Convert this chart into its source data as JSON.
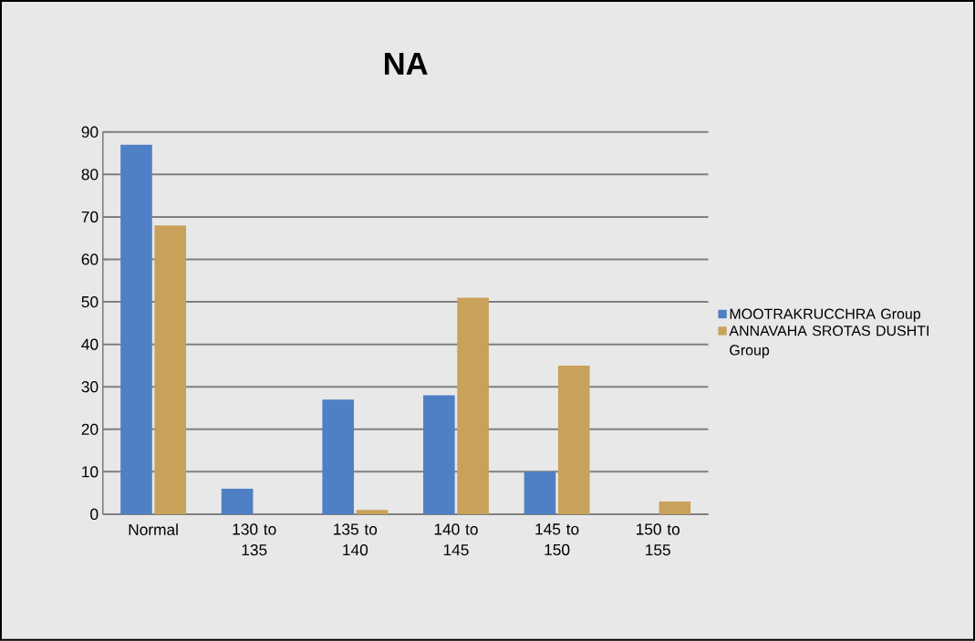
{
  "chart_data": {
    "type": "bar",
    "title": "NA",
    "categories": [
      "Normal",
      "130 to 135",
      "135 to 140",
      "140 to 145",
      "145 to 150",
      "150 to 155"
    ],
    "series": [
      {
        "name": "MOOTRAKRUCCHRA Group",
        "color": "#4f7fc4",
        "values": [
          87,
          6,
          27,
          28,
          10,
          0
        ]
      },
      {
        "name": "ANNAVAHA SROTAS DUSHTI Group",
        "color": "#c8a25a",
        "values": [
          68,
          0,
          1,
          51,
          35,
          3
        ]
      }
    ],
    "ylim": [
      0,
      90
    ],
    "yticks": [
      0,
      10,
      20,
      30,
      40,
      50,
      60,
      70,
      80,
      90
    ],
    "grid": "y",
    "legend": "right"
  }
}
